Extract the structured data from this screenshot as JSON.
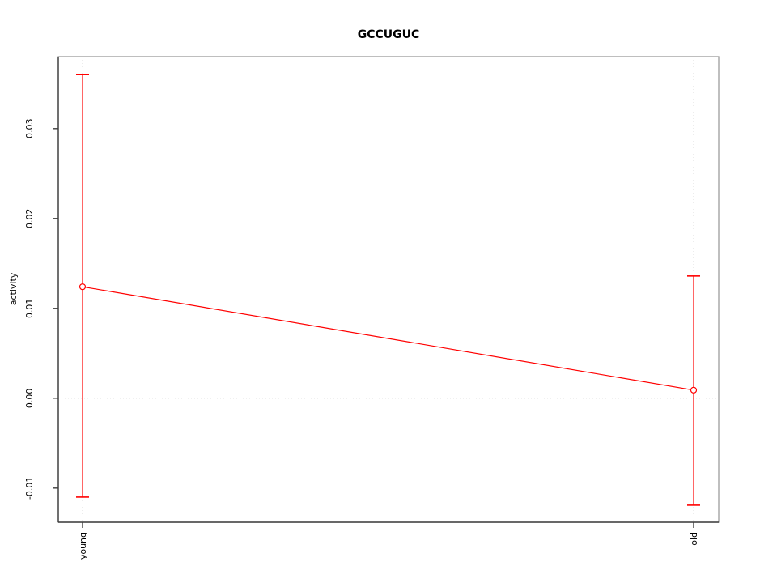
{
  "figure": {
    "background": "#ffffff"
  },
  "chart_data": {
    "type": "line",
    "title": "GCCUGUC",
    "xlabel": "",
    "ylabel": "activity",
    "categories": [
      "young",
      "old"
    ],
    "series": [
      {
        "name": "GCCUGUC",
        "values": [
          0.0124,
          0.0009
        ],
        "error_upper": [
          0.036,
          0.0136
        ],
        "error_lower": [
          -0.011,
          -0.0119
        ],
        "color": "#ff0000",
        "marker": "open-circle"
      }
    ],
    "ylim": [
      -0.0138,
      0.038
    ],
    "yticks": [
      -0.01,
      0,
      0.01,
      0.02,
      0.03
    ],
    "ytick_labels": [
      "-0.01",
      "0.00",
      "0.01",
      "0.02",
      "0.03"
    ],
    "grid": {
      "vertical_at_categories": true,
      "horizontal_at_zero": true,
      "style": "dotted",
      "color": "#d8d8d8"
    },
    "legend_position": "none",
    "axis_color": "#3d3d3d",
    "box_color": "#949494",
    "error_cap_half_width": 8,
    "marker_radius": 3.5
  }
}
